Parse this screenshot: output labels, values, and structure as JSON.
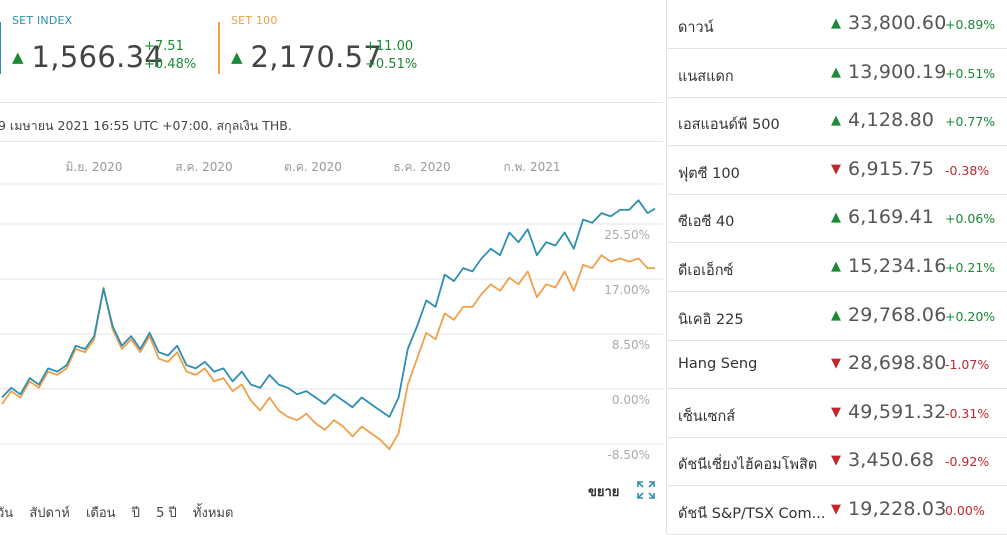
{
  "colors": {
    "set_index": "#2e8fb0",
    "set100": "#f0a04b",
    "up": "#1a8a36",
    "down": "#c0272d"
  },
  "indices": [
    {
      "name": "SET INDEX",
      "value": "1,566.34",
      "change": "+7.51",
      "change_pct": "+0.48%",
      "direction": "up"
    },
    {
      "name": "SET 100",
      "value": "2,170.57",
      "change": "+11.00",
      "change_pct": "+0.51%",
      "direction": "up"
    }
  ],
  "as_of": "9 เมษายน 2021 16:55 UTC +07:00. สกุลเงิน THB.",
  "timeframes": [
    "วัน",
    "สัปดาห์",
    "เดือน",
    "ปี",
    "5 ปี",
    "ทั้งหมด"
  ],
  "expand_label": "ขยาย",
  "chart_data": {
    "type": "line",
    "x_tick_labels": [
      "มิ.ย. 2020",
      "ส.ค. 2020",
      "ต.ค. 2020",
      "ธ.ค. 2020",
      "ก.พ. 2021"
    ],
    "y_tick_labels": [
      "25.50%",
      "17.00%",
      "8.50%",
      "0.00%",
      "-8.50%"
    ],
    "ylim": [
      -8.5,
      34
    ],
    "grid": true,
    "x": [
      "2020-04-20",
      "2020-04-25",
      "2020-04-30",
      "2020-05-05",
      "2020-05-10",
      "2020-05-15",
      "2020-05-20",
      "2020-05-25",
      "2020-05-30",
      "2020-06-04",
      "2020-06-09",
      "2020-06-14",
      "2020-06-19",
      "2020-06-24",
      "2020-06-29",
      "2020-07-04",
      "2020-07-09",
      "2020-07-14",
      "2020-07-19",
      "2020-07-24",
      "2020-07-29",
      "2020-08-03",
      "2020-08-08",
      "2020-08-13",
      "2020-08-18",
      "2020-08-23",
      "2020-08-28",
      "2020-09-02",
      "2020-09-07",
      "2020-09-12",
      "2020-09-17",
      "2020-09-22",
      "2020-09-27",
      "2020-10-02",
      "2020-10-07",
      "2020-10-12",
      "2020-10-17",
      "2020-10-22",
      "2020-10-27",
      "2020-11-01",
      "2020-11-06",
      "2020-11-11",
      "2020-11-16",
      "2020-11-21",
      "2020-11-26",
      "2020-12-01",
      "2020-12-06",
      "2020-12-11",
      "2020-12-16",
      "2020-12-21",
      "2020-12-26",
      "2020-12-31",
      "2021-01-05",
      "2021-01-10",
      "2021-01-15",
      "2021-01-20",
      "2021-01-25",
      "2021-01-30",
      "2021-02-04",
      "2021-02-09",
      "2021-02-14",
      "2021-02-19",
      "2021-02-24",
      "2021-03-01",
      "2021-03-06",
      "2021-03-11",
      "2021-03-16",
      "2021-03-21",
      "2021-03-26",
      "2021-03-31",
      "2021-04-05",
      "2021-04-09"
    ],
    "series": [
      {
        "name": "SET INDEX",
        "color": "#2e8fb0",
        "values": [
          1.0,
          2.5,
          1.5,
          4.0,
          3.0,
          5.5,
          5.0,
          6.0,
          9.0,
          8.5,
          10.5,
          17.8,
          12.0,
          9.0,
          10.5,
          8.5,
          11.0,
          8.0,
          7.5,
          9.0,
          6.0,
          5.5,
          6.5,
          5.0,
          5.5,
          3.5,
          5.0,
          3.0,
          2.5,
          4.5,
          3.0,
          2.5,
          1.5,
          2.0,
          1.0,
          0.0,
          1.5,
          0.5,
          -0.5,
          1.0,
          0.0,
          -1.0,
          -2.0,
          1.0,
          8.5,
          12.0,
          16.0,
          15.0,
          20.0,
          19.0,
          21.0,
          20.5,
          22.5,
          24.0,
          23.0,
          26.5,
          25.0,
          27.0,
          23.0,
          25.0,
          24.5,
          26.5,
          24.0,
          28.5,
          28.0,
          29.5,
          29.0,
          30.0,
          30.0,
          31.5,
          29.5,
          30.2
        ]
      },
      {
        "name": "SET 100",
        "color": "#f0a04b",
        "values": [
          0.0,
          2.0,
          1.0,
          3.5,
          2.5,
          5.0,
          4.5,
          5.5,
          8.5,
          8.0,
          10.0,
          18.0,
          11.5,
          8.5,
          10.0,
          8.0,
          10.5,
          7.0,
          6.5,
          8.0,
          5.0,
          4.5,
          5.5,
          3.5,
          4.0,
          2.0,
          3.0,
          0.5,
          -1.0,
          1.0,
          -1.0,
          -2.0,
          -2.5,
          -1.5,
          -3.0,
          -4.0,
          -2.5,
          -3.5,
          -5.0,
          -3.5,
          -4.5,
          -5.5,
          -7.0,
          -4.5,
          3.0,
          7.0,
          11.0,
          10.0,
          14.0,
          13.0,
          15.0,
          15.0,
          17.0,
          18.5,
          17.5,
          19.5,
          18.5,
          20.5,
          16.5,
          18.5,
          18.0,
          20.5,
          17.5,
          21.5,
          21.0,
          23.0,
          22.0,
          22.5,
          22.0,
          22.5,
          21.0,
          21.0
        ]
      }
    ]
  },
  "markets": [
    {
      "name": "ดาวน์",
      "value": "33,800.60",
      "change": "+0.89%",
      "direction": "up"
    },
    {
      "name": "แนสแดก",
      "value": "13,900.19",
      "change": "+0.51%",
      "direction": "up"
    },
    {
      "name": "เอสแอนด์พี 500",
      "value": "4,128.80",
      "change": "+0.77%",
      "direction": "up"
    },
    {
      "name": "ฟุตซี 100",
      "value": "6,915.75",
      "change": "-0.38%",
      "direction": "down"
    },
    {
      "name": "ซีเอซี 40",
      "value": "6,169.41",
      "change": "+0.06%",
      "direction": "up"
    },
    {
      "name": "ดีเอเอ็กซ์",
      "value": "15,234.16",
      "change": "+0.21%",
      "direction": "up"
    },
    {
      "name": "นิเคอิ 225",
      "value": "29,768.06",
      "change": "+0.20%",
      "direction": "up"
    },
    {
      "name": "Hang Seng",
      "value": "28,698.80",
      "change": "-1.07%",
      "direction": "down"
    },
    {
      "name": "เซ็นเซกส์",
      "value": "49,591.32",
      "change": "-0.31%",
      "direction": "down"
    },
    {
      "name": "ดัชนีเซี่ยงไฮ้คอมโพสิต",
      "value": "3,450.68",
      "change": "-0.92%",
      "direction": "down"
    },
    {
      "name": "ดัชนี S&P/TSX Com...",
      "value": "19,228.03",
      "change": "0.00%",
      "direction": "down"
    }
  ]
}
